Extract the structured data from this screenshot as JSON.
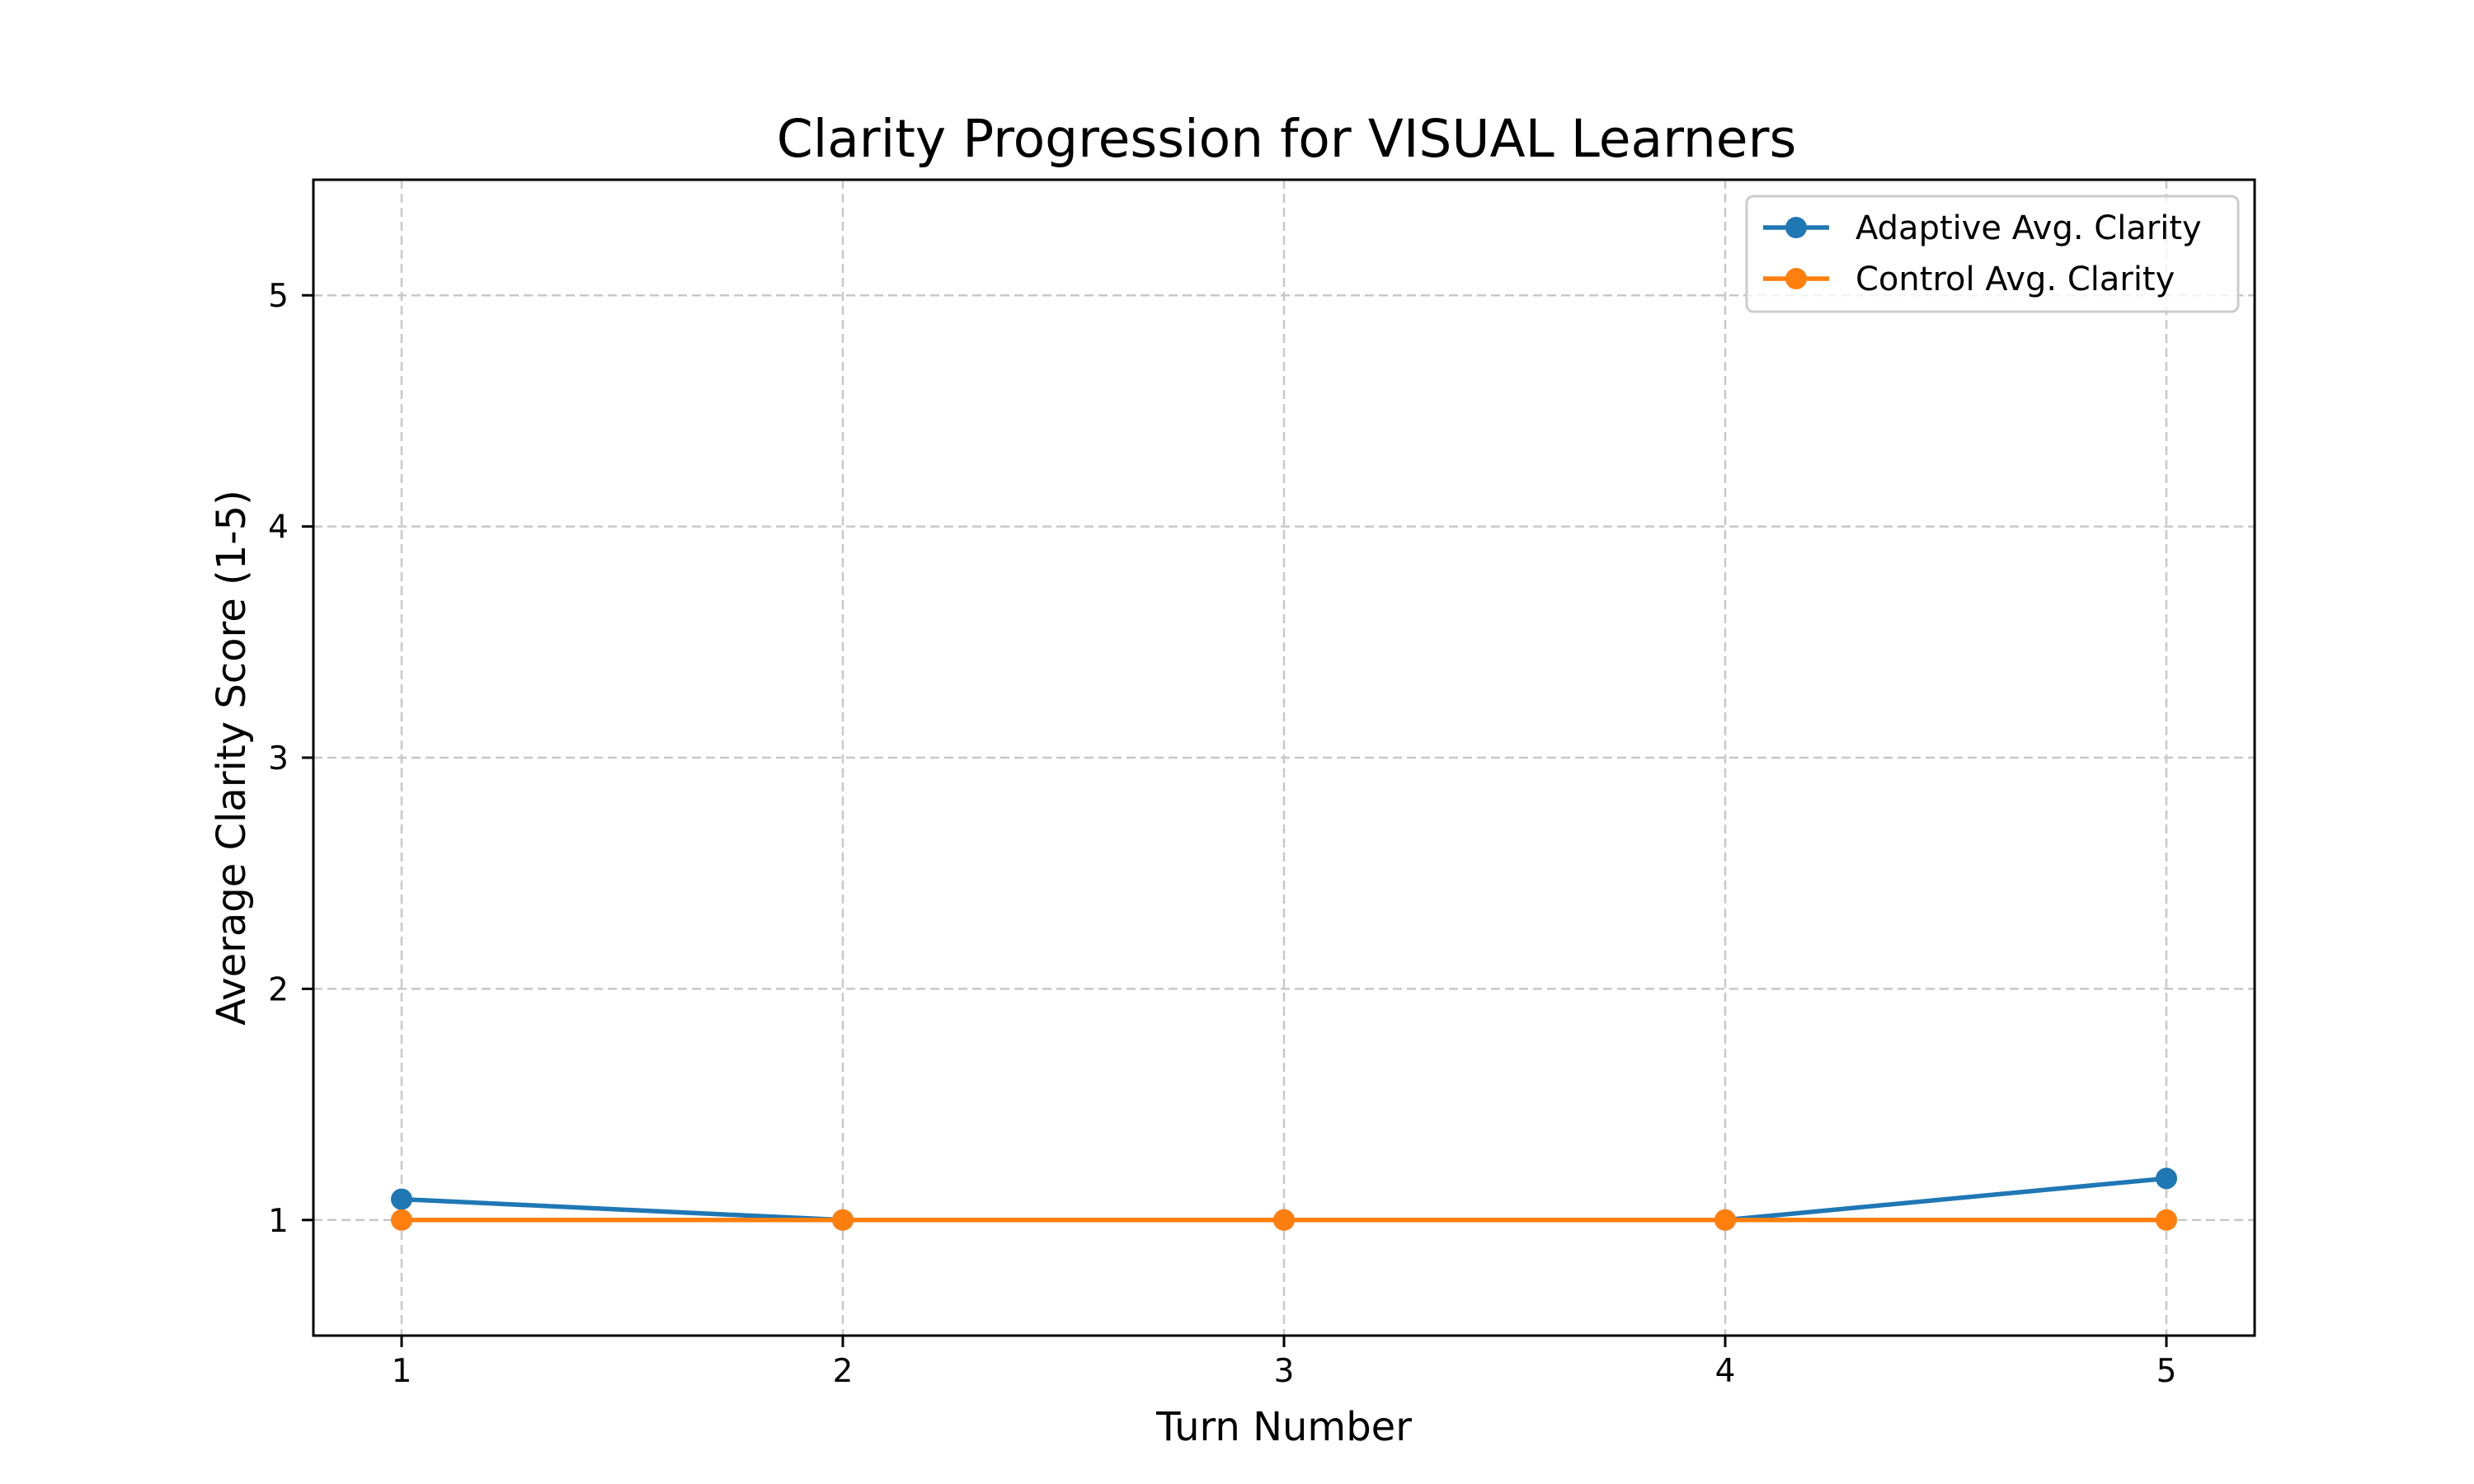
{
  "chart_data": {
    "type": "line",
    "title": "Clarity Progression for VISUAL Learners",
    "xlabel": "Turn Number",
    "ylabel": "Average Clarity Score (1-5)",
    "x": [
      1,
      2,
      3,
      4,
      5
    ],
    "xticks": [
      "1",
      "2",
      "3",
      "4",
      "5"
    ],
    "yticks": [
      "1",
      "2",
      "3",
      "4",
      "5"
    ],
    "xlim": [
      0.8,
      5.2
    ],
    "ylim": [
      0.5,
      5.5
    ],
    "grid": true,
    "legend_position": "top-right",
    "series": [
      {
        "name": "Adaptive Avg. Clarity",
        "color": "#1f77b4",
        "marker": "circle",
        "values": [
          1.09,
          1.0,
          1.0,
          1.0,
          1.18
        ]
      },
      {
        "name": "Control Avg. Clarity",
        "color": "#ff7f0e",
        "marker": "circle",
        "values": [
          1.0,
          1.0,
          1.0,
          1.0,
          1.0
        ]
      }
    ]
  }
}
